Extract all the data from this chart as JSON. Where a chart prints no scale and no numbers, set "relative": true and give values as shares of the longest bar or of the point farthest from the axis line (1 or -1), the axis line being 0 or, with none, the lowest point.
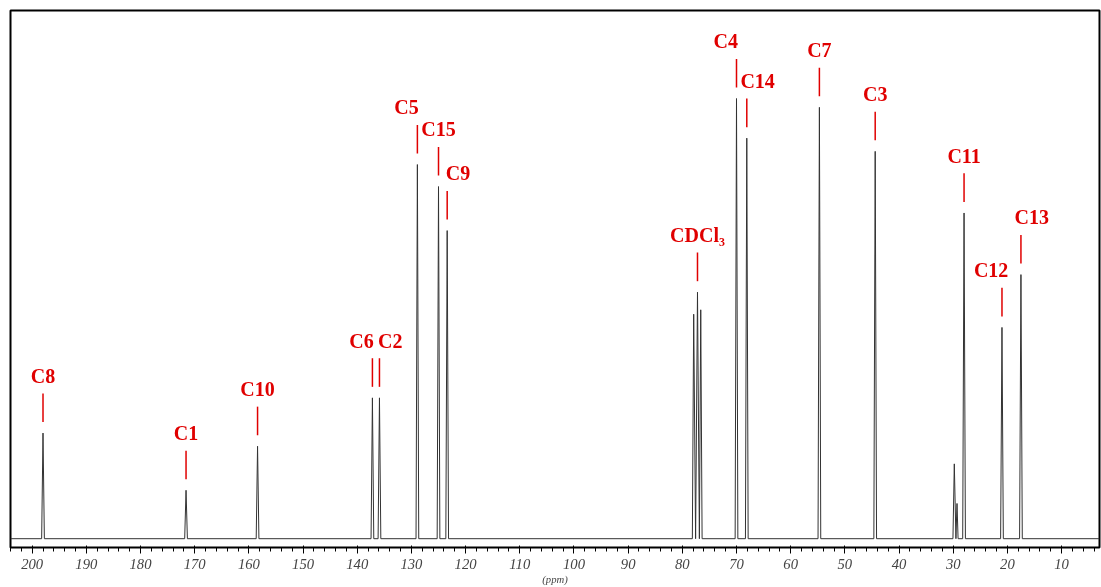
{
  "chart_data": {
    "type": "line",
    "relative": true,
    "xlabel": "(ppm)",
    "xlim": [
      204,
      3
    ],
    "xticks": [
      200,
      190,
      180,
      170,
      160,
      150,
      140,
      130,
      120,
      110,
      100,
      90,
      80,
      70,
      60,
      50,
      40,
      30,
      20,
      10
    ],
    "grid": false,
    "marker": "none",
    "line_style": "solid",
    "series": [
      {
        "color": "#333333",
        "x": [
          204,
          198.25,
          198.0,
          197.75,
          171.85,
          171.6,
          171.35,
          158.65,
          158.4,
          158.15,
          137.45,
          137.2,
          136.95,
          136.15,
          135.9,
          135.65,
          129.15,
          128.9,
          128.65,
          125.25,
          125.0,
          124.75,
          123.65,
          123.4,
          123.15,
          78.15,
          77.9,
          77.55,
          77.2,
          76.85,
          76.6,
          76.35,
          70.25,
          70.0,
          69.75,
          68.35,
          68.1,
          67.85,
          54.95,
          54.7,
          54.45,
          44.65,
          44.4,
          44.15,
          30.05,
          29.8,
          29.5,
          29.3,
          29.1,
          28.25,
          28.0,
          27.75,
          21.25,
          21.0,
          20.75,
          17.75,
          17.5,
          17.25,
          3
        ],
        "values": [
          0,
          0,
          0.24,
          0,
          0,
          0.11,
          0,
          0,
          0.21,
          0,
          0,
          0.32,
          0,
          0,
          0.32,
          0,
          0,
          0.85,
          0,
          0,
          0.8,
          0,
          0,
          0.7,
          0,
          0,
          0.51,
          0,
          0.56,
          0,
          0.52,
          0,
          0,
          1.0,
          0,
          0,
          0.91,
          0,
          0,
          0.98,
          0,
          0,
          0.88,
          0,
          0,
          0.17,
          0,
          0.08,
          0,
          0,
          0.74,
          0,
          0,
          0.48,
          0,
          0,
          0.6,
          0,
          0
        ]
      }
    ],
    "annotations": [
      {
        "text": "C8",
        "x": 198.0,
        "y": 0.24
      },
      {
        "text": "C1",
        "x": 171.6,
        "y": 0.11
      },
      {
        "text": "C10",
        "x": 158.4,
        "y": 0.21
      },
      {
        "text": "C6",
        "x": 137.2,
        "y": 0.32
      },
      {
        "text": "C2",
        "x": 135.9,
        "y": 0.32
      },
      {
        "text": "C5",
        "x": 128.9,
        "y": 0.85
      },
      {
        "text": "C15",
        "x": 125.0,
        "y": 0.8
      },
      {
        "text": "C9",
        "x": 123.4,
        "y": 0.7
      },
      {
        "text": "CDCl₃",
        "x": 77.2,
        "y": 0.56
      },
      {
        "text": "C4",
        "x": 70.0,
        "y": 1.0
      },
      {
        "text": "C14",
        "x": 68.1,
        "y": 0.91
      },
      {
        "text": "C7",
        "x": 54.7,
        "y": 0.98
      },
      {
        "text": "C3",
        "x": 44.4,
        "y": 0.88
      },
      {
        "text": "C11",
        "x": 28.0,
        "y": 0.74
      },
      {
        "text": "C12",
        "x": 21.0,
        "y": 0.48
      },
      {
        "text": "C13",
        "x": 17.5,
        "y": 0.6
      }
    ]
  }
}
